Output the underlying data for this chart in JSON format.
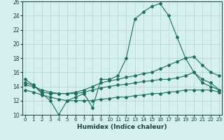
{
  "xlabel": "Humidex (Indice chaleur)",
  "x": [
    0,
    1,
    2,
    3,
    4,
    5,
    6,
    7,
    8,
    9,
    10,
    11,
    12,
    13,
    14,
    15,
    16,
    17,
    18,
    19,
    20,
    21,
    22,
    23
  ],
  "line1": [
    15.0,
    14.2,
    13.0,
    12.0,
    10.0,
    12.0,
    12.5,
    13.0,
    11.0,
    15.0,
    15.0,
    15.5,
    18.0,
    23.5,
    24.5,
    25.3,
    25.7,
    24.0,
    21.0,
    18.0,
    16.0,
    14.5,
    14.0,
    13.5
  ],
  "line2": [
    14.5,
    14.2,
    13.2,
    13.0,
    13.0,
    13.0,
    13.2,
    13.5,
    14.0,
    14.5,
    14.8,
    15.0,
    15.3,
    15.5,
    15.8,
    16.0,
    16.5,
    17.0,
    17.5,
    18.0,
    18.2,
    17.0,
    16.0,
    15.5
  ],
  "line3": [
    14.2,
    14.0,
    13.5,
    13.2,
    13.0,
    13.0,
    13.0,
    13.2,
    13.5,
    13.8,
    14.0,
    14.2,
    14.3,
    14.5,
    14.7,
    14.8,
    15.0,
    15.0,
    15.2,
    15.5,
    16.0,
    15.0,
    14.5,
    13.5
  ],
  "line4": [
    13.5,
    13.2,
    12.8,
    12.5,
    12.2,
    12.0,
    12.0,
    12.0,
    12.0,
    12.2,
    12.3,
    12.5,
    12.5,
    12.7,
    12.8,
    13.0,
    13.0,
    13.2,
    13.3,
    13.5,
    13.5,
    13.5,
    13.5,
    13.2
  ],
  "bg_color": "#d6efef",
  "grid_color": "#b8d8d8",
  "line_color": "#1a7060",
  "ylim": [
    10,
    26
  ],
  "xlim": [
    -0.3,
    23.3
  ]
}
